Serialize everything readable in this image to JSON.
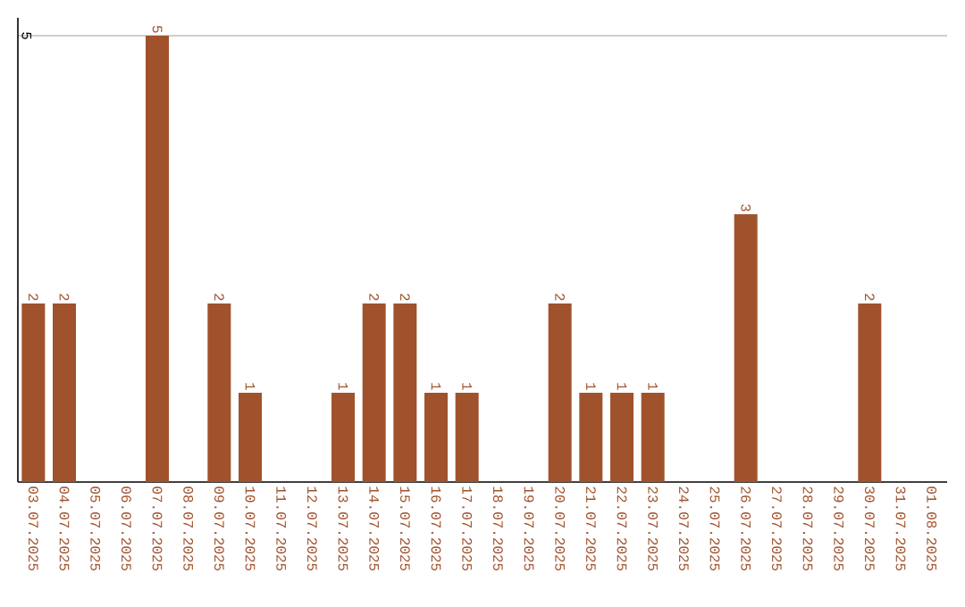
{
  "chart_data": {
    "type": "bar",
    "categories": [
      "03.07.2025",
      "04.07.2025",
      "05.07.2025",
      "06.07.2025",
      "07.07.2025",
      "08.07.2025",
      "09.07.2025",
      "10.07.2025",
      "11.07.2025",
      "12.07.2025",
      "13.07.2025",
      "14.07.2025",
      "15.07.2025",
      "16.07.2025",
      "17.07.2025",
      "18.07.2025",
      "19.07.2025",
      "20.07.2025",
      "21.07.2025",
      "22.07.2025",
      "23.07.2025",
      "24.07.2025",
      "25.07.2025",
      "26.07.2025",
      "27.07.2025",
      "28.07.2025",
      "29.07.2025",
      "30.07.2025",
      "31.07.2025",
      "01.08.2025"
    ],
    "values": [
      2,
      2,
      0,
      0,
      5,
      0,
      2,
      1,
      0,
      0,
      1,
      2,
      2,
      1,
      1,
      0,
      0,
      2,
      1,
      1,
      1,
      0,
      0,
      3,
      0,
      0,
      0,
      2,
      0,
      0
    ],
    "value_labels": [
      "2",
      "2",
      null,
      null,
      "5",
      null,
      "2",
      "1",
      null,
      null,
      "1",
      "2",
      "2",
      "1",
      "1",
      null,
      null,
      "2",
      "1",
      "1",
      "1",
      null,
      null,
      "3",
      null,
      null,
      null,
      "2",
      null,
      null
    ],
    "color": "#a0522d",
    "ylim": [
      0,
      5.2
    ],
    "yticks": [
      5
    ],
    "grid": "y"
  }
}
